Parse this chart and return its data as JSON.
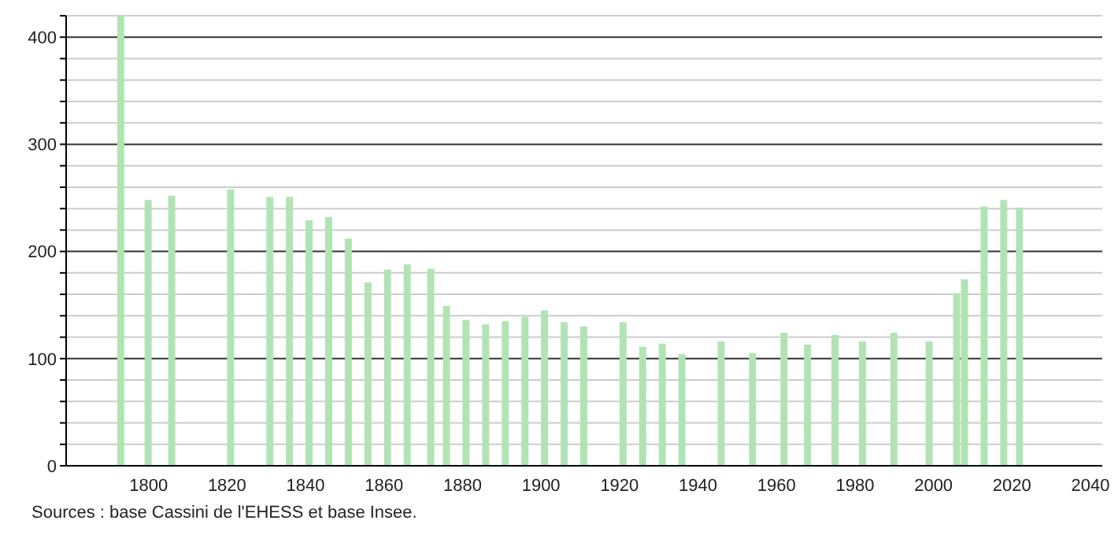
{
  "chart_data": {
    "type": "bar",
    "x": [
      1793,
      1800,
      1806,
      1821,
      1831,
      1836,
      1841,
      1846,
      1851,
      1856,
      1861,
      1866,
      1872,
      1876,
      1881,
      1886,
      1891,
      1896,
      1901,
      1906,
      1911,
      1921,
      1926,
      1931,
      1936,
      1946,
      1954,
      1962,
      1968,
      1975,
      1982,
      1990,
      1999,
      2006,
      2008,
      2013,
      2018,
      2022
    ],
    "values": [
      420,
      248,
      252,
      258,
      251,
      251,
      229,
      232,
      212,
      171,
      183,
      188,
      184,
      149,
      136,
      132,
      135,
      139,
      145,
      134,
      130,
      134,
      111,
      114,
      104,
      116,
      105,
      124,
      113,
      122,
      116,
      124,
      116,
      161,
      174,
      242,
      248,
      241
    ],
    "color": "#b2e3b5",
    "xlim": [
      1779,
      2043
    ],
    "xticks": [
      1800,
      1820,
      1840,
      1860,
      1880,
      1900,
      1920,
      1940,
      1960,
      1980,
      2000,
      2020,
      2040
    ],
    "ylim": [
      0,
      420
    ],
    "yticks": [
      0,
      {
        "value": 20,
        "label": null
      },
      {
        "value": 40,
        "label": null
      },
      {
        "value": 60,
        "label": null
      },
      {
        "value": 80,
        "label": null
      },
      100,
      {
        "value": 120,
        "label": null
      },
      {
        "value": 140,
        "label": null
      },
      {
        "value": 160,
        "label": null
      },
      {
        "value": 180,
        "label": null
      },
      200,
      {
        "value": 220,
        "label": null
      },
      {
        "value": 240,
        "label": null
      },
      {
        "value": 260,
        "label": null
      },
      {
        "value": 280,
        "label": null
      },
      300,
      {
        "value": 320,
        "label": null
      },
      {
        "value": 340,
        "label": null
      },
      {
        "value": 360,
        "label": null
      },
      {
        "value": 380,
        "label": null
      },
      400,
      {
        "value": 420,
        "label": null
      }
    ],
    "grid": "y",
    "annotations": [
      "Sources : base Cassini de l'EHESS et base Insee."
    ]
  }
}
